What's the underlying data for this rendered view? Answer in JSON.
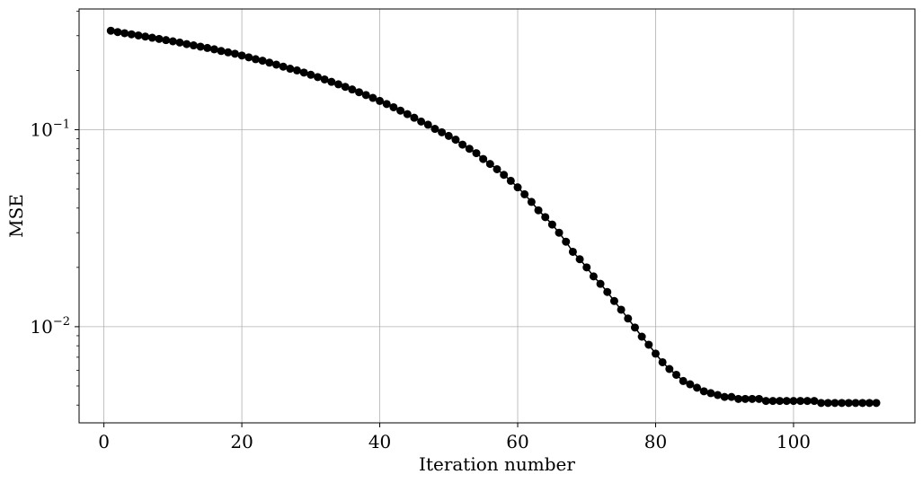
{
  "chart_data": {
    "type": "line",
    "title": "",
    "xlabel": "Iteration number",
    "ylabel": "MSE",
    "xlim": [
      -3.6,
      117.6
    ],
    "ylim": [
      0.00325,
      0.41
    ],
    "yscale": "log",
    "grid": true,
    "marker": "circle",
    "color": "#000000",
    "x_ticks": [
      0,
      20,
      40,
      60,
      80,
      100
    ],
    "y_ticks": [
      {
        "value": 0.1,
        "base": "10",
        "exp": "−1"
      },
      {
        "value": 0.01,
        "base": "10",
        "exp": "−2"
      }
    ],
    "x": [
      1,
      2,
      3,
      4,
      5,
      6,
      7,
      8,
      9,
      10,
      11,
      12,
      13,
      14,
      15,
      16,
      17,
      18,
      19,
      20,
      21,
      22,
      23,
      24,
      25,
      26,
      27,
      28,
      29,
      30,
      31,
      32,
      33,
      34,
      35,
      36,
      37,
      38,
      39,
      40,
      41,
      42,
      43,
      44,
      45,
      46,
      47,
      48,
      49,
      50,
      51,
      52,
      53,
      54,
      55,
      56,
      57,
      58,
      59,
      60,
      61,
      62,
      63,
      64,
      65,
      66,
      67,
      68,
      69,
      70,
      71,
      72,
      73,
      74,
      75,
      76,
      77,
      78,
      79,
      80,
      81,
      82,
      83,
      84,
      85,
      86,
      87,
      88,
      89,
      90,
      91,
      92,
      93,
      94,
      95,
      96,
      97,
      98,
      99,
      100,
      101,
      102,
      103,
      104,
      105,
      106,
      107,
      108,
      109,
      110,
      111,
      112
    ],
    "y": [
      0.318,
      0.313,
      0.309,
      0.305,
      0.301,
      0.297,
      0.293,
      0.289,
      0.285,
      0.281,
      0.277,
      0.272,
      0.268,
      0.264,
      0.26,
      0.256,
      0.251,
      0.247,
      0.243,
      0.238,
      0.233,
      0.228,
      0.224,
      0.219,
      0.214,
      0.209,
      0.204,
      0.2,
      0.195,
      0.19,
      0.185,
      0.18,
      0.175,
      0.17,
      0.165,
      0.16,
      0.155,
      0.15,
      0.145,
      0.14,
      0.135,
      0.13,
      0.125,
      0.12,
      0.115,
      0.11,
      0.106,
      0.101,
      0.097,
      0.093,
      0.089,
      0.084,
      0.08,
      0.076,
      0.071,
      0.067,
      0.063,
      0.059,
      0.055,
      0.051,
      0.047,
      0.043,
      0.039,
      0.036,
      0.033,
      0.03,
      0.027,
      0.024,
      0.022,
      0.02,
      0.018,
      0.0165,
      0.015,
      0.0135,
      0.0122,
      0.011,
      0.0099,
      0.0089,
      0.0081,
      0.0073,
      0.0066,
      0.0061,
      0.0057,
      0.0053,
      0.0051,
      0.0049,
      0.0047,
      0.0046,
      0.0045,
      0.0044,
      0.0044,
      0.0043,
      0.0043,
      0.0043,
      0.0043,
      0.0042,
      0.0042,
      0.0042,
      0.0042,
      0.0042,
      0.0042,
      0.0042,
      0.0042,
      0.0041,
      0.0041,
      0.0041,
      0.0041,
      0.0041,
      0.0041,
      0.0041,
      0.0041,
      0.0041
    ]
  }
}
